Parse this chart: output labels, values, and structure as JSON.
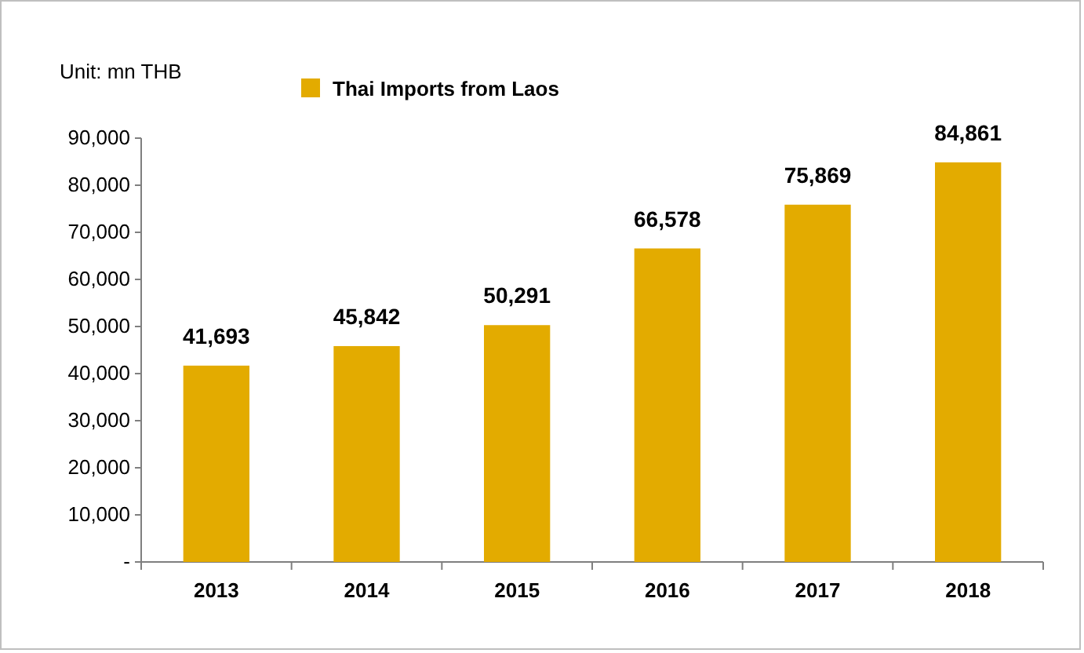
{
  "chart_data": {
    "type": "bar",
    "title": null,
    "annotations": [
      "Unit: mn THB"
    ],
    "categories": [
      "2013",
      "2014",
      "2015",
      "2016",
      "2017",
      "2018"
    ],
    "series": [
      {
        "name": "Thai Imports from Laos",
        "color": "#e3ab00",
        "values": [
          41693,
          45842,
          50291,
          66578,
          75869,
          84861
        ],
        "value_labels": [
          "41,693",
          "45,842",
          "50,291",
          "66,578",
          "75,869",
          "84,861"
        ]
      }
    ],
    "ylim": [
      0,
      90000
    ],
    "yticks": [
      {
        "value": 0,
        "label": "-"
      },
      {
        "value": 10000,
        "label": "10,000"
      },
      {
        "value": 20000,
        "label": "20,000"
      },
      {
        "value": 30000,
        "label": "30,000"
      },
      {
        "value": 40000,
        "label": "40,000"
      },
      {
        "value": 50000,
        "label": "50,000"
      },
      {
        "value": 60000,
        "label": "60,000"
      },
      {
        "value": 70000,
        "label": "70,000"
      },
      {
        "value": 80000,
        "label": "80,000"
      },
      {
        "value": 90000,
        "label": "90,000"
      }
    ],
    "legend": "top left",
    "grid": false
  }
}
